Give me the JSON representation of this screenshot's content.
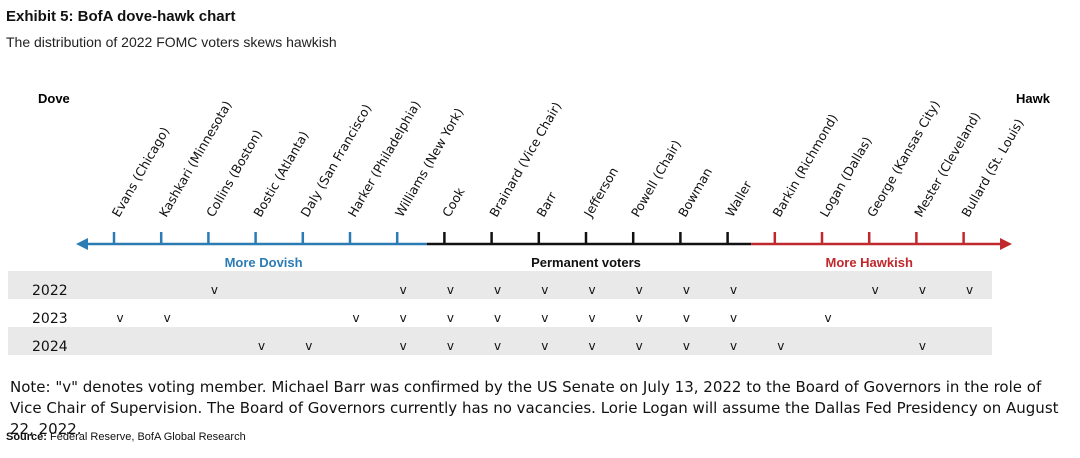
{
  "header": {
    "title": "Exhibit 5: BofA dove-hawk chart",
    "subtitle": "The distribution of 2022 FOMC voters skews hawkish"
  },
  "chart_data": {
    "type": "table",
    "left_end_label": "Dove",
    "right_end_label": "Hawk",
    "members": [
      {
        "name": "Evans (Chicago)",
        "group": "dovish"
      },
      {
        "name": "Kashkari (Minnesota)",
        "group": "dovish"
      },
      {
        "name": "Collins (Boston)",
        "group": "dovish"
      },
      {
        "name": "Bostic (Atlanta)",
        "group": "dovish"
      },
      {
        "name": "Daly (San Francisco)",
        "group": "dovish"
      },
      {
        "name": "Harker (Philadelphia)",
        "group": "dovish"
      },
      {
        "name": "Williams (New York)",
        "group": "dovish"
      },
      {
        "name": "Cook",
        "group": "permanent"
      },
      {
        "name": "Brainard (Vice Chair)",
        "group": "permanent"
      },
      {
        "name": "Barr",
        "group": "permanent"
      },
      {
        "name": "Jefferson",
        "group": "permanent"
      },
      {
        "name": "Powell (Chair)",
        "group": "permanent"
      },
      {
        "name": "Bowman",
        "group": "permanent"
      },
      {
        "name": "Waller",
        "group": "permanent"
      },
      {
        "name": "Barkin (Richmond)",
        "group": "hawkish"
      },
      {
        "name": "Logan (Dallas)",
        "group": "hawkish"
      },
      {
        "name": "George (Kansas City)",
        "group": "hawkish"
      },
      {
        "name": "Mester (Cleveland)",
        "group": "hawkish"
      },
      {
        "name": "Bullard (St. Louis)",
        "group": "hawkish"
      }
    ],
    "segments": [
      {
        "label": "More Dovish",
        "group": "dovish",
        "color": "#2b7bb5"
      },
      {
        "label": "Permanent voters",
        "group": "permanent",
        "color": "#111111"
      },
      {
        "label": "More Hawkish",
        "group": "hawkish",
        "color": "#c0282d"
      }
    ],
    "vote_mark": "v",
    "years": [
      {
        "year": "2022",
        "voters": [
          2,
          6,
          7,
          8,
          9,
          10,
          11,
          12,
          13,
          16,
          17,
          18
        ]
      },
      {
        "year": "2023",
        "voters": [
          0,
          1,
          5,
          6,
          7,
          8,
          9,
          10,
          11,
          12,
          13,
          15
        ]
      },
      {
        "year": "2024",
        "voters": [
          3,
          4,
          6,
          7,
          8,
          9,
          10,
          11,
          12,
          13,
          14,
          17
        ]
      }
    ]
  },
  "note": "Note: \"v\" denotes voting member. Michael Barr was confirmed by the US Senate on July 13, 2022 to the Board of Governors in the role of Vice Chair of Supervision. The Board of Governors currently has no vacancies. Lorie Logan will assume the Dallas Fed Presidency on August 22, 2022.",
  "source": {
    "label": "Source:",
    "text": "Federal Reserve, BofA Global Research"
  }
}
